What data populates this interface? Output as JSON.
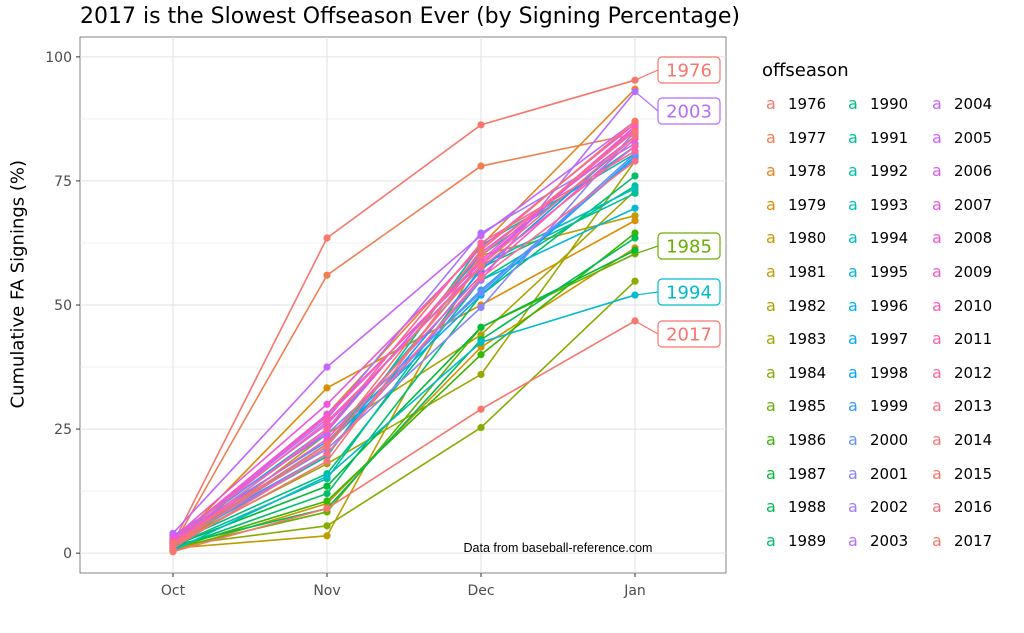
{
  "chart_data": {
    "type": "line",
    "title": "2017 is the Slowest Offseason Ever (by Signing Percentage)",
    "xlabel": "",
    "ylabel": "Cumulative FA Signings (%)",
    "categories": [
      "Oct",
      "Nov",
      "Dec",
      "Jan"
    ],
    "ylim": [
      -4,
      104
    ],
    "yticks": [
      0,
      25,
      50,
      75,
      100
    ],
    "grid": true,
    "legend_title": "offseason",
    "legend_key_glyph": "a",
    "legend_position": "right",
    "source_note": "Data from baseball-reference.com",
    "annotations": [
      {
        "label": "1976",
        "series": "1976"
      },
      {
        "label": "2003",
        "series": "2003"
      },
      {
        "label": "1985",
        "series": "1985"
      },
      {
        "label": "1994",
        "series": "1994"
      },
      {
        "label": "2017",
        "series": "2017"
      }
    ],
    "series": [
      {
        "name": "1976",
        "color": "#F8766D",
        "values": [
          2.0,
          63.5,
          86.3,
          95.3
        ]
      },
      {
        "name": "1977",
        "color": "#F17D52",
        "values": [
          1.5,
          56.0,
          78.0,
          84.5
        ]
      },
      {
        "name": "1978",
        "color": "#E7851E",
        "values": [
          1.0,
          28.0,
          62.0,
          93.5
        ]
      },
      {
        "name": "1979",
        "color": "#DB8E00",
        "values": [
          1.5,
          33.3,
          50.0,
          67.0
        ]
      },
      {
        "name": "1980",
        "color": "#CE9500",
        "values": [
          0.5,
          10.0,
          41.5,
          61.5
        ]
      },
      {
        "name": "1981",
        "color": "#BF9C00",
        "values": [
          1.0,
          3.5,
          60.0,
          68.0
        ]
      },
      {
        "name": "1982",
        "color": "#AEA200",
        "values": [
          0.5,
          24.0,
          44.0,
          73.0
        ]
      },
      {
        "name": "1983",
        "color": "#9CA700",
        "values": [
          2.0,
          18.0,
          36.0,
          79.0
        ]
      },
      {
        "name": "1984",
        "color": "#86AC00",
        "values": [
          1.5,
          5.5,
          25.3,
          54.8
        ]
      },
      {
        "name": "1985",
        "color": "#68B000",
        "values": [
          1.0,
          8.3,
          45.5,
          60.3
        ]
      },
      {
        "name": "1986",
        "color": "#39B600",
        "values": [
          1.0,
          10.5,
          40.0,
          64.5
        ]
      },
      {
        "name": "1987",
        "color": "#00BA38",
        "values": [
          1.5,
          13.5,
          45.5,
          61.0
        ]
      },
      {
        "name": "1988",
        "color": "#00BC55",
        "values": [
          1.5,
          9.0,
          43.0,
          63.5
        ]
      },
      {
        "name": "1989",
        "color": "#00BE6C",
        "values": [
          1.0,
          12.0,
          52.0,
          76.0
        ]
      },
      {
        "name": "1990",
        "color": "#00C083",
        "values": [
          2.0,
          16.0,
          55.0,
          74.0
        ]
      },
      {
        "name": "1991",
        "color": "#00C096",
        "values": [
          1.5,
          15.0,
          57.5,
          72.5
        ]
      },
      {
        "name": "1992",
        "color": "#00C0A9",
        "values": [
          2.0,
          19.5,
          62.0,
          80.5
        ]
      },
      {
        "name": "1993",
        "color": "#00BFBA",
        "values": [
          1.5,
          22.0,
          58.0,
          73.5
        ]
      },
      {
        "name": "1994",
        "color": "#00BCCB",
        "values": [
          0.5,
          15.5,
          42.5,
          52.0
        ]
      },
      {
        "name": "1995",
        "color": "#00B8DA",
        "values": [
          1.0,
          20.0,
          55.0,
          69.5
        ]
      },
      {
        "name": "1996",
        "color": "#00B3E8",
        "values": [
          2.5,
          25.0,
          60.0,
          82.0
        ]
      },
      {
        "name": "1997",
        "color": "#00ADF5",
        "values": [
          2.0,
          22.0,
          52.0,
          80.0
        ]
      },
      {
        "name": "1998",
        "color": "#00A5FF",
        "values": [
          2.5,
          20.0,
          57.0,
          84.0
        ]
      },
      {
        "name": "1999",
        "color": "#359BFF",
        "values": [
          3.0,
          22.5,
          53.0,
          79.5
        ]
      },
      {
        "name": "2000",
        "color": "#6A8FFF",
        "values": [
          3.5,
          24.0,
          52.5,
          80.5
        ]
      },
      {
        "name": "2001",
        "color": "#8B84FF",
        "values": [
          2.5,
          21.0,
          49.5,
          85.0
        ]
      },
      {
        "name": "2002",
        "color": "#A378FF",
        "values": [
          2.5,
          27.0,
          64.5,
          82.5
        ]
      },
      {
        "name": "2003",
        "color": "#B56EFF",
        "values": [
          2.0,
          20.0,
          55.0,
          93.0
        ]
      },
      {
        "name": "2004",
        "color": "#C465FC",
        "values": [
          4.0,
          37.5,
          64.0,
          87.0
        ]
      },
      {
        "name": "2005",
        "color": "#D25FF6",
        "values": [
          3.0,
          26.0,
          58.0,
          86.0
        ]
      },
      {
        "name": "2006",
        "color": "#DE5AEE",
        "values": [
          2.0,
          24.5,
          60.5,
          84.0
        ]
      },
      {
        "name": "2007",
        "color": "#E857E4",
        "values": [
          2.5,
          28.0,
          58.5,
          85.5
        ]
      },
      {
        "name": "2008",
        "color": "#F056D8",
        "values": [
          3.0,
          30.0,
          61.5,
          86.5
        ]
      },
      {
        "name": "2009",
        "color": "#F658CB",
        "values": [
          2.0,
          23.0,
          56.0,
          83.5
        ]
      },
      {
        "name": "2010",
        "color": "#FA5BBD",
        "values": [
          2.5,
          27.5,
          59.0,
          86.0
        ]
      },
      {
        "name": "2011",
        "color": "#FC61AE",
        "values": [
          2.0,
          26.5,
          57.5,
          82.0
        ]
      },
      {
        "name": "2012",
        "color": "#FD679D",
        "values": [
          1.5,
          25.0,
          62.5,
          81.0
        ]
      },
      {
        "name": "2013",
        "color": "#FB6E8C",
        "values": [
          1.0,
          20.0,
          55.5,
          79.0
        ]
      },
      {
        "name": "2014",
        "color": "#FA7479",
        "values": [
          1.5,
          18.5,
          60.0,
          85.0
        ]
      },
      {
        "name": "2015",
        "color": "#F87567",
        "values": [
          2.0,
          22.0,
          61.0,
          87.0
        ]
      },
      {
        "name": "2016",
        "color": "#F8737E",
        "values": [
          1.5,
          21.5,
          58.0,
          84.0
        ]
      },
      {
        "name": "2017",
        "color": "#F8766D",
        "values": [
          0.3,
          9.0,
          29.0,
          46.8
        ]
      }
    ]
  }
}
